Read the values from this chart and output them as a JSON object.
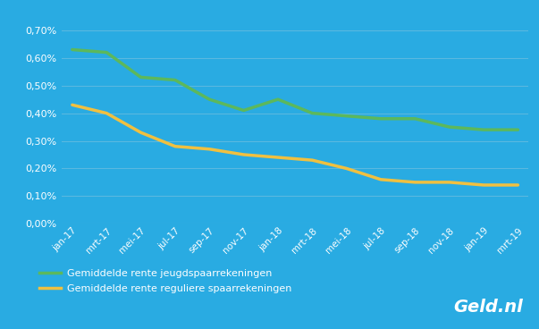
{
  "x_labels": [
    "jan-17",
    "mrt-17",
    "mei-17",
    "jul-17",
    "sep-17",
    "nov-17",
    "jan-18",
    "mrt-18",
    "mei-18",
    "jul-18",
    "sep-18",
    "nov-18",
    "jan-19",
    "mrt-19"
  ],
  "green_values": [
    0.0063,
    0.0062,
    0.0053,
    0.0052,
    0.0045,
    0.0041,
    0.0045,
    0.004,
    0.0039,
    0.0038,
    0.0038,
    0.0035,
    0.0034,
    0.0034
  ],
  "yellow_values": [
    0.0043,
    0.004,
    0.0033,
    0.0028,
    0.0027,
    0.0025,
    0.0024,
    0.0023,
    0.002,
    0.0016,
    0.0015,
    0.0015,
    0.0014,
    0.0014
  ],
  "green_color": "#5cb85c",
  "yellow_color": "#f0c040",
  "background_color": "#29abe2",
  "grid_color": "#5ab8e0",
  "text_color": "#ffffff",
  "line_width": 2.5,
  "legend_green": "Gemiddelde rente jeugdspaarrekeningen",
  "legend_yellow": "Gemiddelde rente reguliere spaarrekeningen",
  "watermark": "Geld.nl",
  "ylim": [
    0.0,
    0.0075
  ],
  "yticks": [
    0.0,
    0.001,
    0.002,
    0.003,
    0.004,
    0.005,
    0.006,
    0.007
  ]
}
